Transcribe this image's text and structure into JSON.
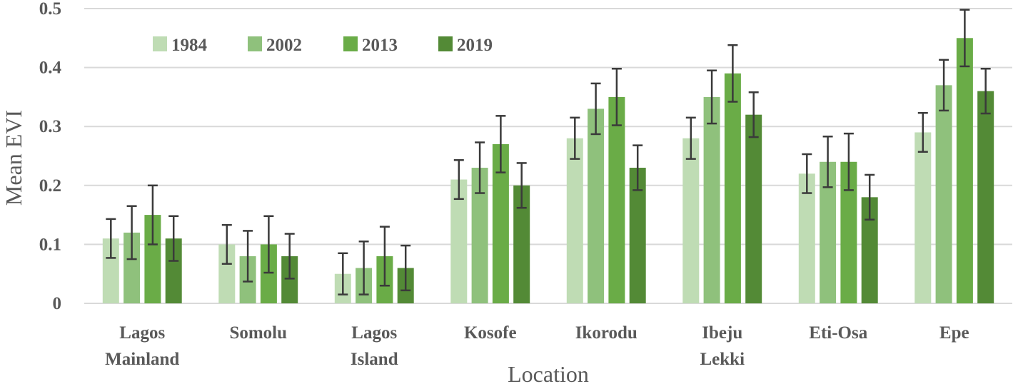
{
  "chart_data": {
    "type": "bar",
    "title": "",
    "xlabel": "Location",
    "ylabel": "Mean EVI",
    "ylim": [
      0,
      0.5
    ],
    "yticks": [
      "0",
      "0.1",
      "0.2",
      "0.3",
      "0.4",
      "0.5"
    ],
    "grid": true,
    "legend_position": "top-left",
    "categories": [
      [
        "Lagos",
        "Mainland"
      ],
      [
        "Somolu"
      ],
      [
        "Lagos",
        "Island"
      ],
      [
        "Kosofe"
      ],
      [
        "Ikorodu"
      ],
      [
        "Ibeju",
        "Lekki"
      ],
      [
        "Eti-Osa"
      ],
      [
        "Epe"
      ]
    ],
    "series": [
      {
        "name": "1984",
        "color": "#bfdcb4",
        "values": [
          0.11,
          0.1,
          0.05,
          0.21,
          0.28,
          0.28,
          0.22,
          0.29
        ],
        "errors": [
          0.033,
          0.033,
          0.035,
          0.033,
          0.035,
          0.035,
          0.033,
          0.033
        ]
      },
      {
        "name": "2002",
        "color": "#8fc17c",
        "values": [
          0.12,
          0.08,
          0.06,
          0.23,
          0.33,
          0.35,
          0.24,
          0.37
        ],
        "errors": [
          0.045,
          0.043,
          0.045,
          0.043,
          0.043,
          0.045,
          0.043,
          0.043
        ]
      },
      {
        "name": "2013",
        "color": "#6aac47",
        "values": [
          0.15,
          0.1,
          0.08,
          0.27,
          0.35,
          0.39,
          0.24,
          0.45
        ],
        "errors": [
          0.05,
          0.048,
          0.05,
          0.048,
          0.048,
          0.048,
          0.048,
          0.048
        ]
      },
      {
        "name": "2019",
        "color": "#538a36",
        "values": [
          0.11,
          0.08,
          0.06,
          0.2,
          0.23,
          0.32,
          0.18,
          0.36
        ],
        "errors": [
          0.038,
          0.038,
          0.038,
          0.038,
          0.038,
          0.038,
          0.038,
          0.038
        ]
      }
    ]
  }
}
